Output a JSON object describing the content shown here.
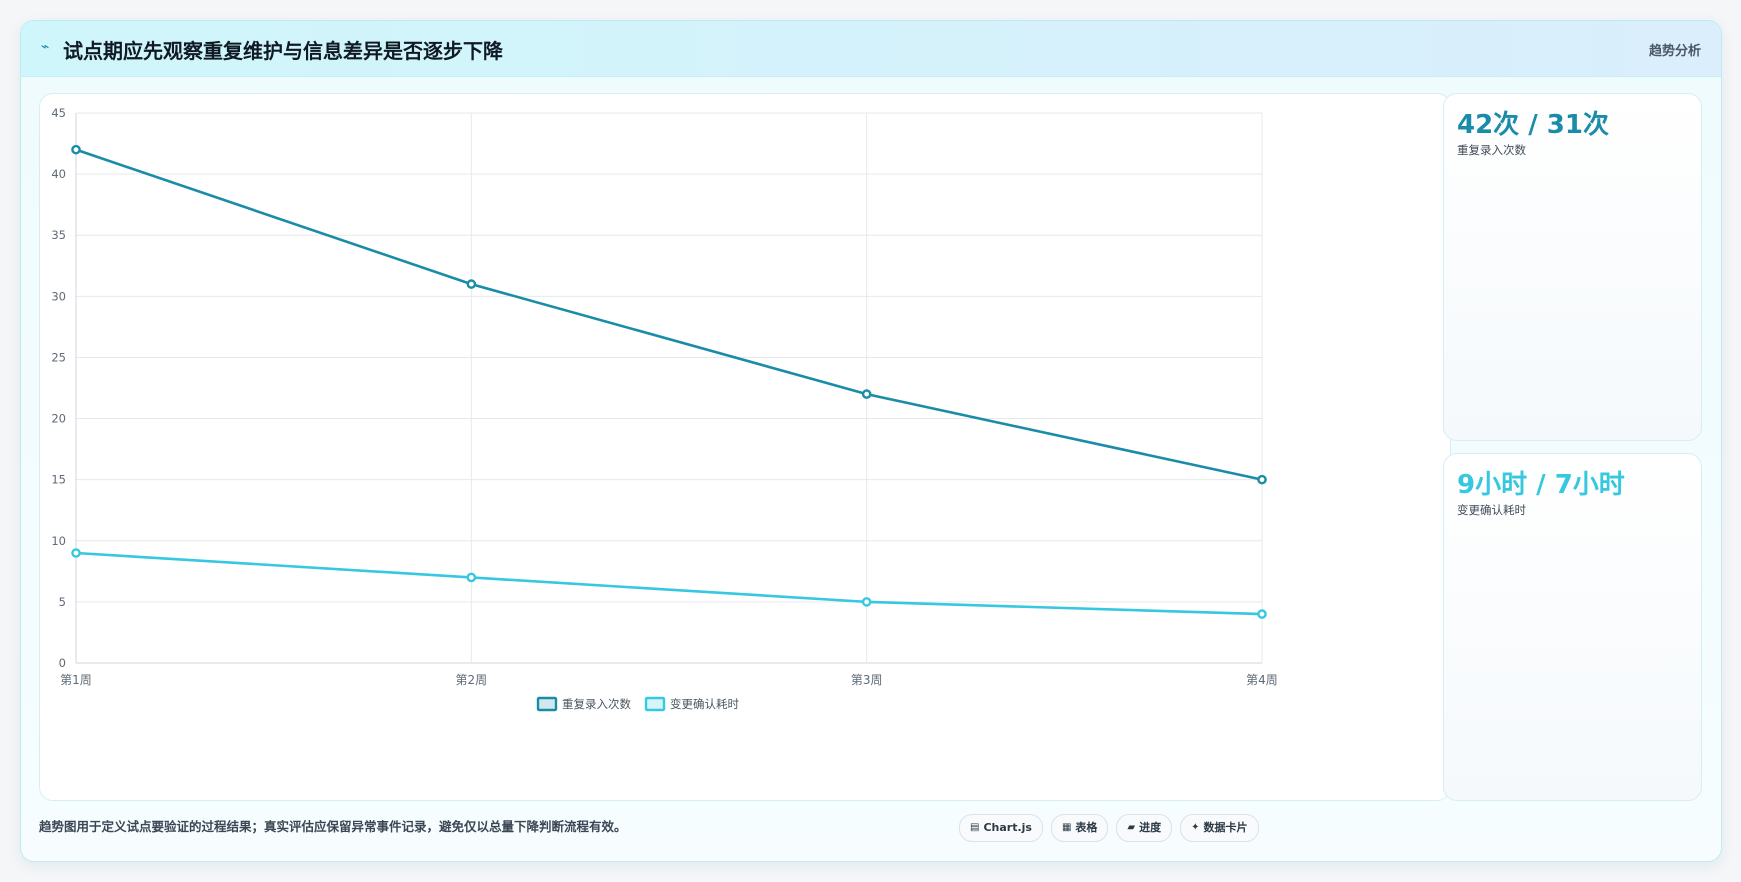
{
  "header": {
    "icon": "chart-trend-icon",
    "title": "试点期应先观察重复维护与信息差异是否逐步下降",
    "tag": "趋势分析"
  },
  "chart_data": {
    "type": "line",
    "categories": [
      "第1周",
      "第2周",
      "第3周",
      "第4周"
    ],
    "series": [
      {
        "name": "重复录入次数",
        "values": [
          42,
          31,
          22,
          15
        ],
        "color": "#1a8ca8"
      },
      {
        "name": "变更确认耗时",
        "values": [
          9,
          7,
          5,
          4
        ],
        "color": "#35c8e0"
      }
    ],
    "ylim": [
      0,
      45
    ],
    "yticks": [
      "0",
      "5",
      "10",
      "15",
      "20",
      "25",
      "30",
      "35",
      "40",
      "45"
    ],
    "grid": true,
    "legend": "bottom"
  },
  "stats": [
    {
      "value": "42次 / 31次",
      "label": "重复录入次数",
      "color": "#1a8ca8"
    },
    {
      "value": "9小时 / 7小时",
      "label": "变更确认耗时",
      "color": "#35c8e0"
    }
  ],
  "footer": {
    "note": "趋势图用于定义试点要验证的过程结果；真实评估应保留异常事件记录，避免仅以总量下降判断流程有效。",
    "pills": [
      {
        "icon": "chart-icon",
        "glyph": "▤",
        "label": "Chart.js"
      },
      {
        "icon": "table-icon",
        "glyph": "▦",
        "label": "表格"
      },
      {
        "icon": "progress-icon",
        "glyph": "▰",
        "label": "进度"
      },
      {
        "icon": "data-card-icon",
        "glyph": "✦",
        "label": "数据卡片"
      }
    ]
  }
}
